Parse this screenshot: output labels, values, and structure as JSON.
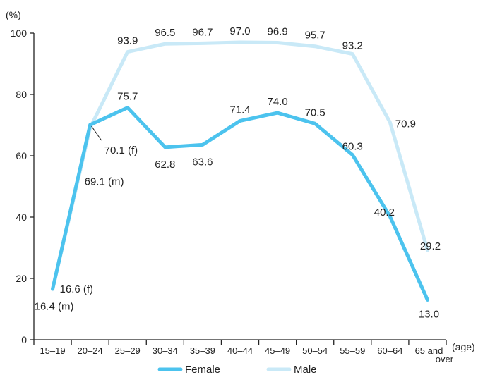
{
  "chart_data": {
    "type": "line",
    "ylabel": "(%)",
    "xunit": "(age)",
    "categories": [
      "15–19",
      "20–24",
      "25–29",
      "30–34",
      "35–39",
      "40–44",
      "45–49",
      "50–54",
      "55–59",
      "60–64",
      "65 and over"
    ],
    "ylim": [
      0,
      100
    ],
    "yticks": [
      0,
      20,
      40,
      60,
      80,
      100
    ],
    "grid": false,
    "legend_position": "bottom",
    "series": [
      {
        "name": "Female",
        "color": "#4cc3ee",
        "values": [
          16.6,
          70.1,
          75.7,
          62.8,
          63.6,
          71.4,
          74.0,
          70.5,
          60.3,
          40.2,
          13.0
        ]
      },
      {
        "name": "Male",
        "color": "#c9e9f7",
        "values": [
          16.4,
          69.1,
          93.9,
          96.5,
          96.7,
          97.0,
          96.9,
          95.7,
          93.2,
          70.9,
          29.2
        ]
      }
    ],
    "labels": [
      {
        "text": "16.6 (f)",
        "series": 0,
        "index": 0
      },
      {
        "text": "16.4 (m)",
        "series": 1,
        "index": 0
      },
      {
        "text": "70.1 (f)",
        "series": 0,
        "index": 1
      },
      {
        "text": "69.1 (m)",
        "series": 1,
        "index": 1
      },
      {
        "text": "75.7",
        "series": 0,
        "index": 2
      },
      {
        "text": "62.8",
        "series": 0,
        "index": 3
      },
      {
        "text": "63.6",
        "series": 0,
        "index": 4
      },
      {
        "text": "71.4",
        "series": 0,
        "index": 5
      },
      {
        "text": "74.0",
        "series": 0,
        "index": 6
      },
      {
        "text": "70.5",
        "series": 0,
        "index": 7
      },
      {
        "text": "60.3",
        "series": 0,
        "index": 8
      },
      {
        "text": "40.2",
        "series": 0,
        "index": 9
      },
      {
        "text": "13.0",
        "series": 0,
        "index": 10
      },
      {
        "text": "93.9",
        "series": 1,
        "index": 2
      },
      {
        "text": "96.5",
        "series": 1,
        "index": 3
      },
      {
        "text": "96.7",
        "series": 1,
        "index": 4
      },
      {
        "text": "97.0",
        "series": 1,
        "index": 5
      },
      {
        "text": "96.9",
        "series": 1,
        "index": 6
      },
      {
        "text": "95.7",
        "series": 1,
        "index": 7
      },
      {
        "text": "93.2",
        "series": 1,
        "index": 8
      },
      {
        "text": "70.9",
        "series": 1,
        "index": 9
      },
      {
        "text": "29.2",
        "series": 1,
        "index": 10
      }
    ]
  }
}
